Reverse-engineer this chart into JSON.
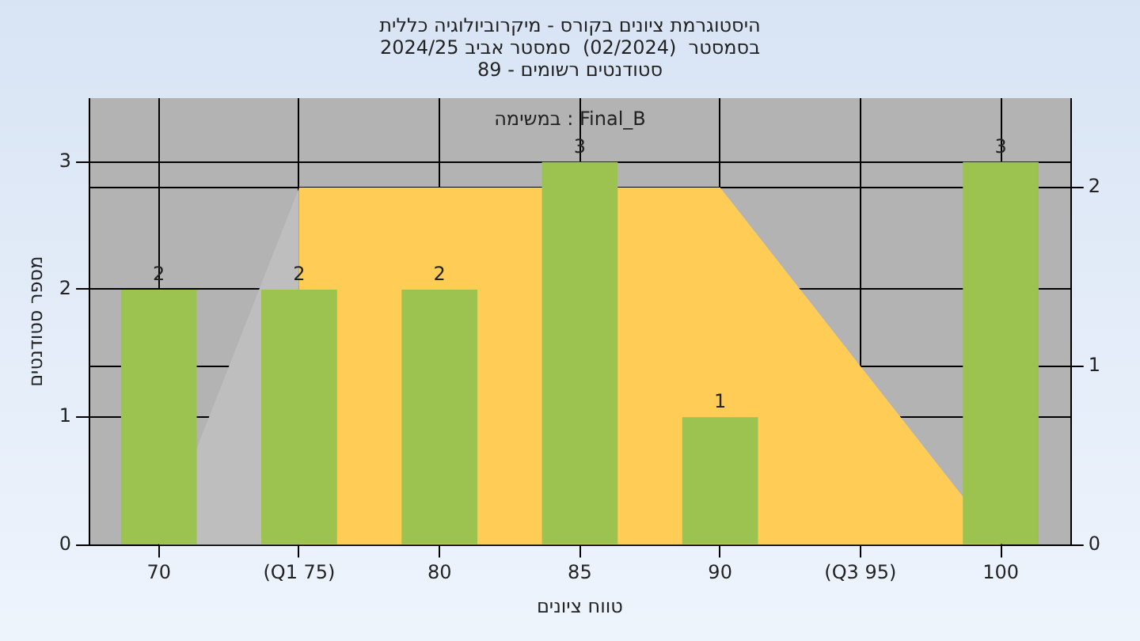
{
  "chart_data": {
    "type": "bar",
    "title": "היסטוגרמת ציונים בקורס - מיקרוביולוגיה כללית",
    "subtitle": "בסמסטר  (02/2024)  סמסטר אביב 2024/25\nסטודנטים רשומים - 89",
    "xlabel": "טווח ציונים",
    "ylabel": "מספר סטודנטים",
    "annotations": [
      "Final_B : במשימה"
    ],
    "categories": [
      "70",
      "(Q1 75)",
      "80",
      "85",
      "90",
      "(Q3 95)",
      "100"
    ],
    "series": [
      {
        "color": "#9cc24f",
        "values": [
          2,
          2,
          2,
          3,
          1,
          null,
          3
        ],
        "value_labels": [
          "2",
          "2",
          "2",
          "3",
          "1",
          null,
          "3"
        ]
      },
      {
        "type": "area",
        "axis": "y2",
        "color": "#bebebe",
        "values": [
          0,
          2,
          null,
          null,
          null,
          null,
          null
        ]
      },
      {
        "type": "area",
        "axis": "y2",
        "color": "#ffcc55",
        "values": [
          null,
          2,
          2,
          null,
          2,
          1,
          0
        ]
      }
    ],
    "ylim": [
      0,
      3.5
    ],
    "yticks": [
      0,
      1,
      2,
      3
    ],
    "y2lim": [
      0,
      2.5
    ],
    "y2ticks": [
      0,
      1,
      2
    ],
    "grid": true
  }
}
